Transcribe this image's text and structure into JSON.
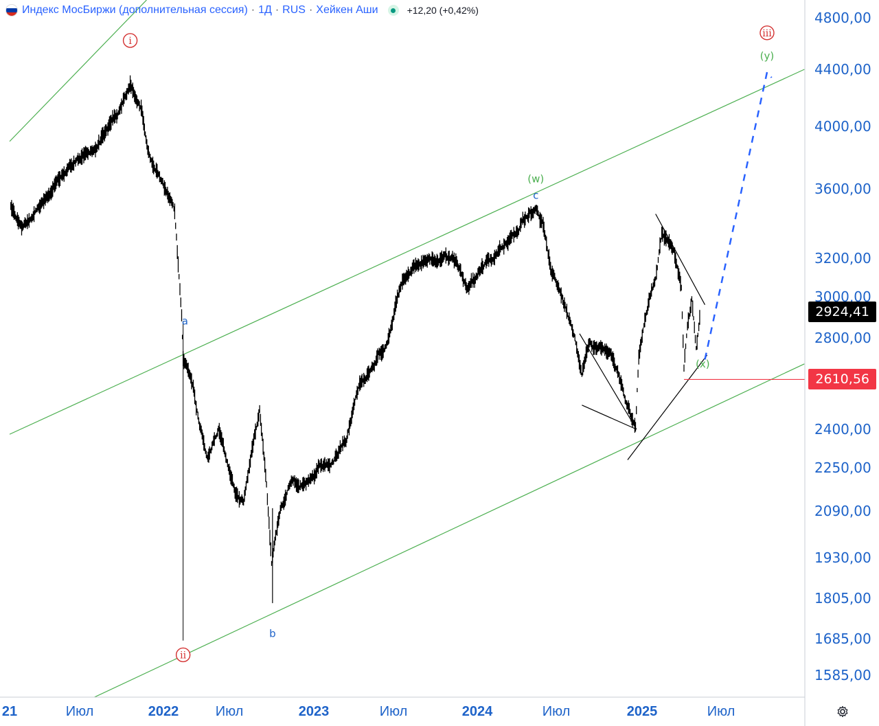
{
  "header": {
    "title": "Индекс МосБиржи (дополнительная сессия)",
    "sep1": "·",
    "interval": "1Д",
    "sep2": "·",
    "exchange": "RUS",
    "sep3": "·",
    "chart_style": "Хейкен Аши",
    "change": "+12,20 (+0,42%)",
    "status_icon": "market-status-dot",
    "flag_icon": "russia-flag-icon"
  },
  "colors": {
    "accent": "#2962ff",
    "candles": "#000000",
    "channel": "#4caf50",
    "wave_red": "#d32f2f",
    "wave_green": "#4caf50",
    "wave_blue": "#1e63c9",
    "projection": "#2962ff",
    "support_line": "#f23645",
    "last_price_bg": "#000000",
    "support_price_bg": "#f23645"
  },
  "badges": {
    "last_price": "2924,41",
    "support_price": "2610,56"
  },
  "settings_icon": "gear-icon",
  "chart_data": {
    "type": "line",
    "subtype": "heikin-ashi daily",
    "scale": "log",
    "title": "Индекс МосБиржи (дополнительная сессия)",
    "x_axis_labels": [
      "21",
      "Июл",
      "2022",
      "Июл",
      "2023",
      "Июл",
      "2024",
      "Июл",
      "2025",
      "Июл"
    ],
    "x_axis_labels_bold": [
      "21",
      "2022",
      "2023",
      "2024",
      "2025"
    ],
    "xlim": [
      "2021-01-01",
      "2025-12-31"
    ],
    "y_axis_labels": [
      "4800,00",
      "4400,00",
      "4000,00",
      "3600,00",
      "3200,00",
      "3000,00",
      "2800,00",
      "2400,00",
      "2250,00",
      "2090,00",
      "1930,00",
      "1805,00",
      "1685,00",
      "1585,00"
    ],
    "ylim": [
      1540,
      4950
    ],
    "last_price": 2924.41,
    "support_level": 2610.56,
    "series": [
      {
        "name": "Индекс МосБиржи",
        "points": [
          [
            "2021-01-04",
            3500
          ],
          [
            "2021-02-01",
            3380
          ],
          [
            "2021-03-01",
            3450
          ],
          [
            "2021-04-01",
            3530
          ],
          [
            "2021-05-01",
            3620
          ],
          [
            "2021-06-01",
            3730
          ],
          [
            "2021-07-01",
            3780
          ],
          [
            "2021-08-01",
            3840
          ],
          [
            "2021-09-01",
            4000
          ],
          [
            "2021-10-01",
            4130
          ],
          [
            "2021-10-20",
            4290
          ],
          [
            "2021-11-15",
            4100
          ],
          [
            "2021-12-01",
            3820
          ],
          [
            "2021-12-20",
            3700
          ],
          [
            "2022-01-10",
            3560
          ],
          [
            "2022-02-01",
            3450
          ],
          [
            "2022-02-20",
            2900
          ],
          [
            "2022-02-24",
            2700
          ],
          [
            "2022-03-24",
            2600
          ],
          [
            "2022-04-01",
            2480
          ],
          [
            "2022-05-01",
            2300
          ],
          [
            "2022-06-01",
            2400
          ],
          [
            "2022-07-15",
            2150
          ],
          [
            "2022-08-01",
            2130
          ],
          [
            "2022-09-05",
            2500
          ],
          [
            "2022-09-20",
            2200
          ],
          [
            "2022-10-01",
            1920
          ],
          [
            "2022-10-20",
            2100
          ],
          [
            "2022-11-15",
            2220
          ],
          [
            "2022-12-15",
            2180
          ],
          [
            "2023-01-15",
            2240
          ],
          [
            "2023-02-15",
            2270
          ],
          [
            "2023-03-15",
            2350
          ],
          [
            "2023-04-15",
            2600
          ],
          [
            "2023-05-15",
            2650
          ],
          [
            "2023-06-15",
            2780
          ],
          [
            "2023-07-15",
            3050
          ],
          [
            "2023-08-15",
            3150
          ],
          [
            "2023-09-15",
            3200
          ],
          [
            "2023-10-15",
            3180
          ],
          [
            "2023-11-15",
            3200
          ],
          [
            "2023-12-10",
            3050
          ],
          [
            "2024-01-10",
            3150
          ],
          [
            "2024-02-10",
            3200
          ],
          [
            "2024-03-10",
            3300
          ],
          [
            "2024-04-15",
            3400
          ],
          [
            "2024-05-15",
            3460
          ],
          [
            "2024-06-01",
            3380
          ],
          [
            "2024-06-20",
            3150
          ],
          [
            "2024-07-15",
            2980
          ],
          [
            "2024-08-10",
            2820
          ],
          [
            "2024-08-25",
            2650
          ],
          [
            "2024-09-10",
            2800
          ],
          [
            "2024-10-01",
            2750
          ],
          [
            "2024-10-25",
            2750
          ],
          [
            "2024-11-15",
            2600
          ],
          [
            "2024-12-10",
            2450
          ],
          [
            "2024-12-18",
            2400
          ],
          [
            "2024-12-25",
            2720
          ],
          [
            "2025-01-15",
            2950
          ],
          [
            "2025-02-01",
            3100
          ],
          [
            "2025-02-15",
            3330
          ],
          [
            "2025-02-25",
            3320
          ],
          [
            "2025-03-15",
            3250
          ],
          [
            "2025-04-01",
            3050
          ],
          [
            "2025-04-07",
            2650
          ],
          [
            "2025-04-15",
            2860
          ],
          [
            "2025-04-25",
            2990
          ],
          [
            "2025-05-05",
            2740
          ],
          [
            "2025-05-15",
            2924
          ]
        ]
      }
    ],
    "wave_labels": [
      {
        "text": "i",
        "style": "circle",
        "color": "red",
        "date": "2021-10-20",
        "value": 4620
      },
      {
        "text": "ii",
        "style": "circle",
        "color": "red",
        "date": "2022-02-24",
        "value": 1640
      },
      {
        "text": "iii",
        "style": "circle",
        "color": "red",
        "date": "2025-10-10",
        "value": 4680
      },
      {
        "text": "a",
        "style": "plain",
        "color": "blue",
        "date": "2022-03-01",
        "value": 2880
      },
      {
        "text": "b",
        "style": "plain",
        "color": "blue",
        "date": "2022-10-03",
        "value": 1700
      },
      {
        "text": "c",
        "style": "plain",
        "color": "blue",
        "date": "2024-05-15",
        "value": 3560
      },
      {
        "text": "(w)",
        "style": "plain",
        "color": "green",
        "date": "2024-05-15",
        "value": 3660
      },
      {
        "text": "(x)",
        "style": "plain",
        "color": "green",
        "date": "2025-05-20",
        "value": 2680
      },
      {
        "text": "(y)",
        "style": "plain",
        "color": "green",
        "date": "2025-10-10",
        "value": 4500
      }
    ],
    "channel_lines": [
      {
        "from": [
          "2021-01-01",
          3900
        ],
        "to": [
          "2021-11-25",
          4950
        ]
      },
      {
        "from": [
          "2021-01-01",
          2380
        ],
        "to": [
          "2025-12-31",
          4400
        ]
      },
      {
        "from": [
          "2021-07-01",
          1500
        ],
        "to": [
          "2025-12-31",
          2680
        ]
      }
    ],
    "trend_lines": [
      {
        "from": [
          "2024-08-20",
          2820
        ],
        "to": [
          "2024-12-20",
          2400
        ]
      },
      {
        "from": [
          "2024-08-25",
          2500
        ],
        "to": [
          "2024-12-20",
          2400
        ]
      },
      {
        "from": [
          "2024-12-01",
          2280
        ],
        "to": [
          "2025-05-30",
          2720
        ]
      },
      {
        "from": [
          "2025-02-01",
          3450
        ],
        "to": [
          "2025-05-25",
          2960
        ]
      }
    ],
    "projection": [
      [
        "2025-05-25",
        2700
      ],
      [
        "2025-10-10",
        4380
      ],
      [
        "2025-10-20",
        4340
      ]
    ],
    "grid": false,
    "legend": "none"
  }
}
